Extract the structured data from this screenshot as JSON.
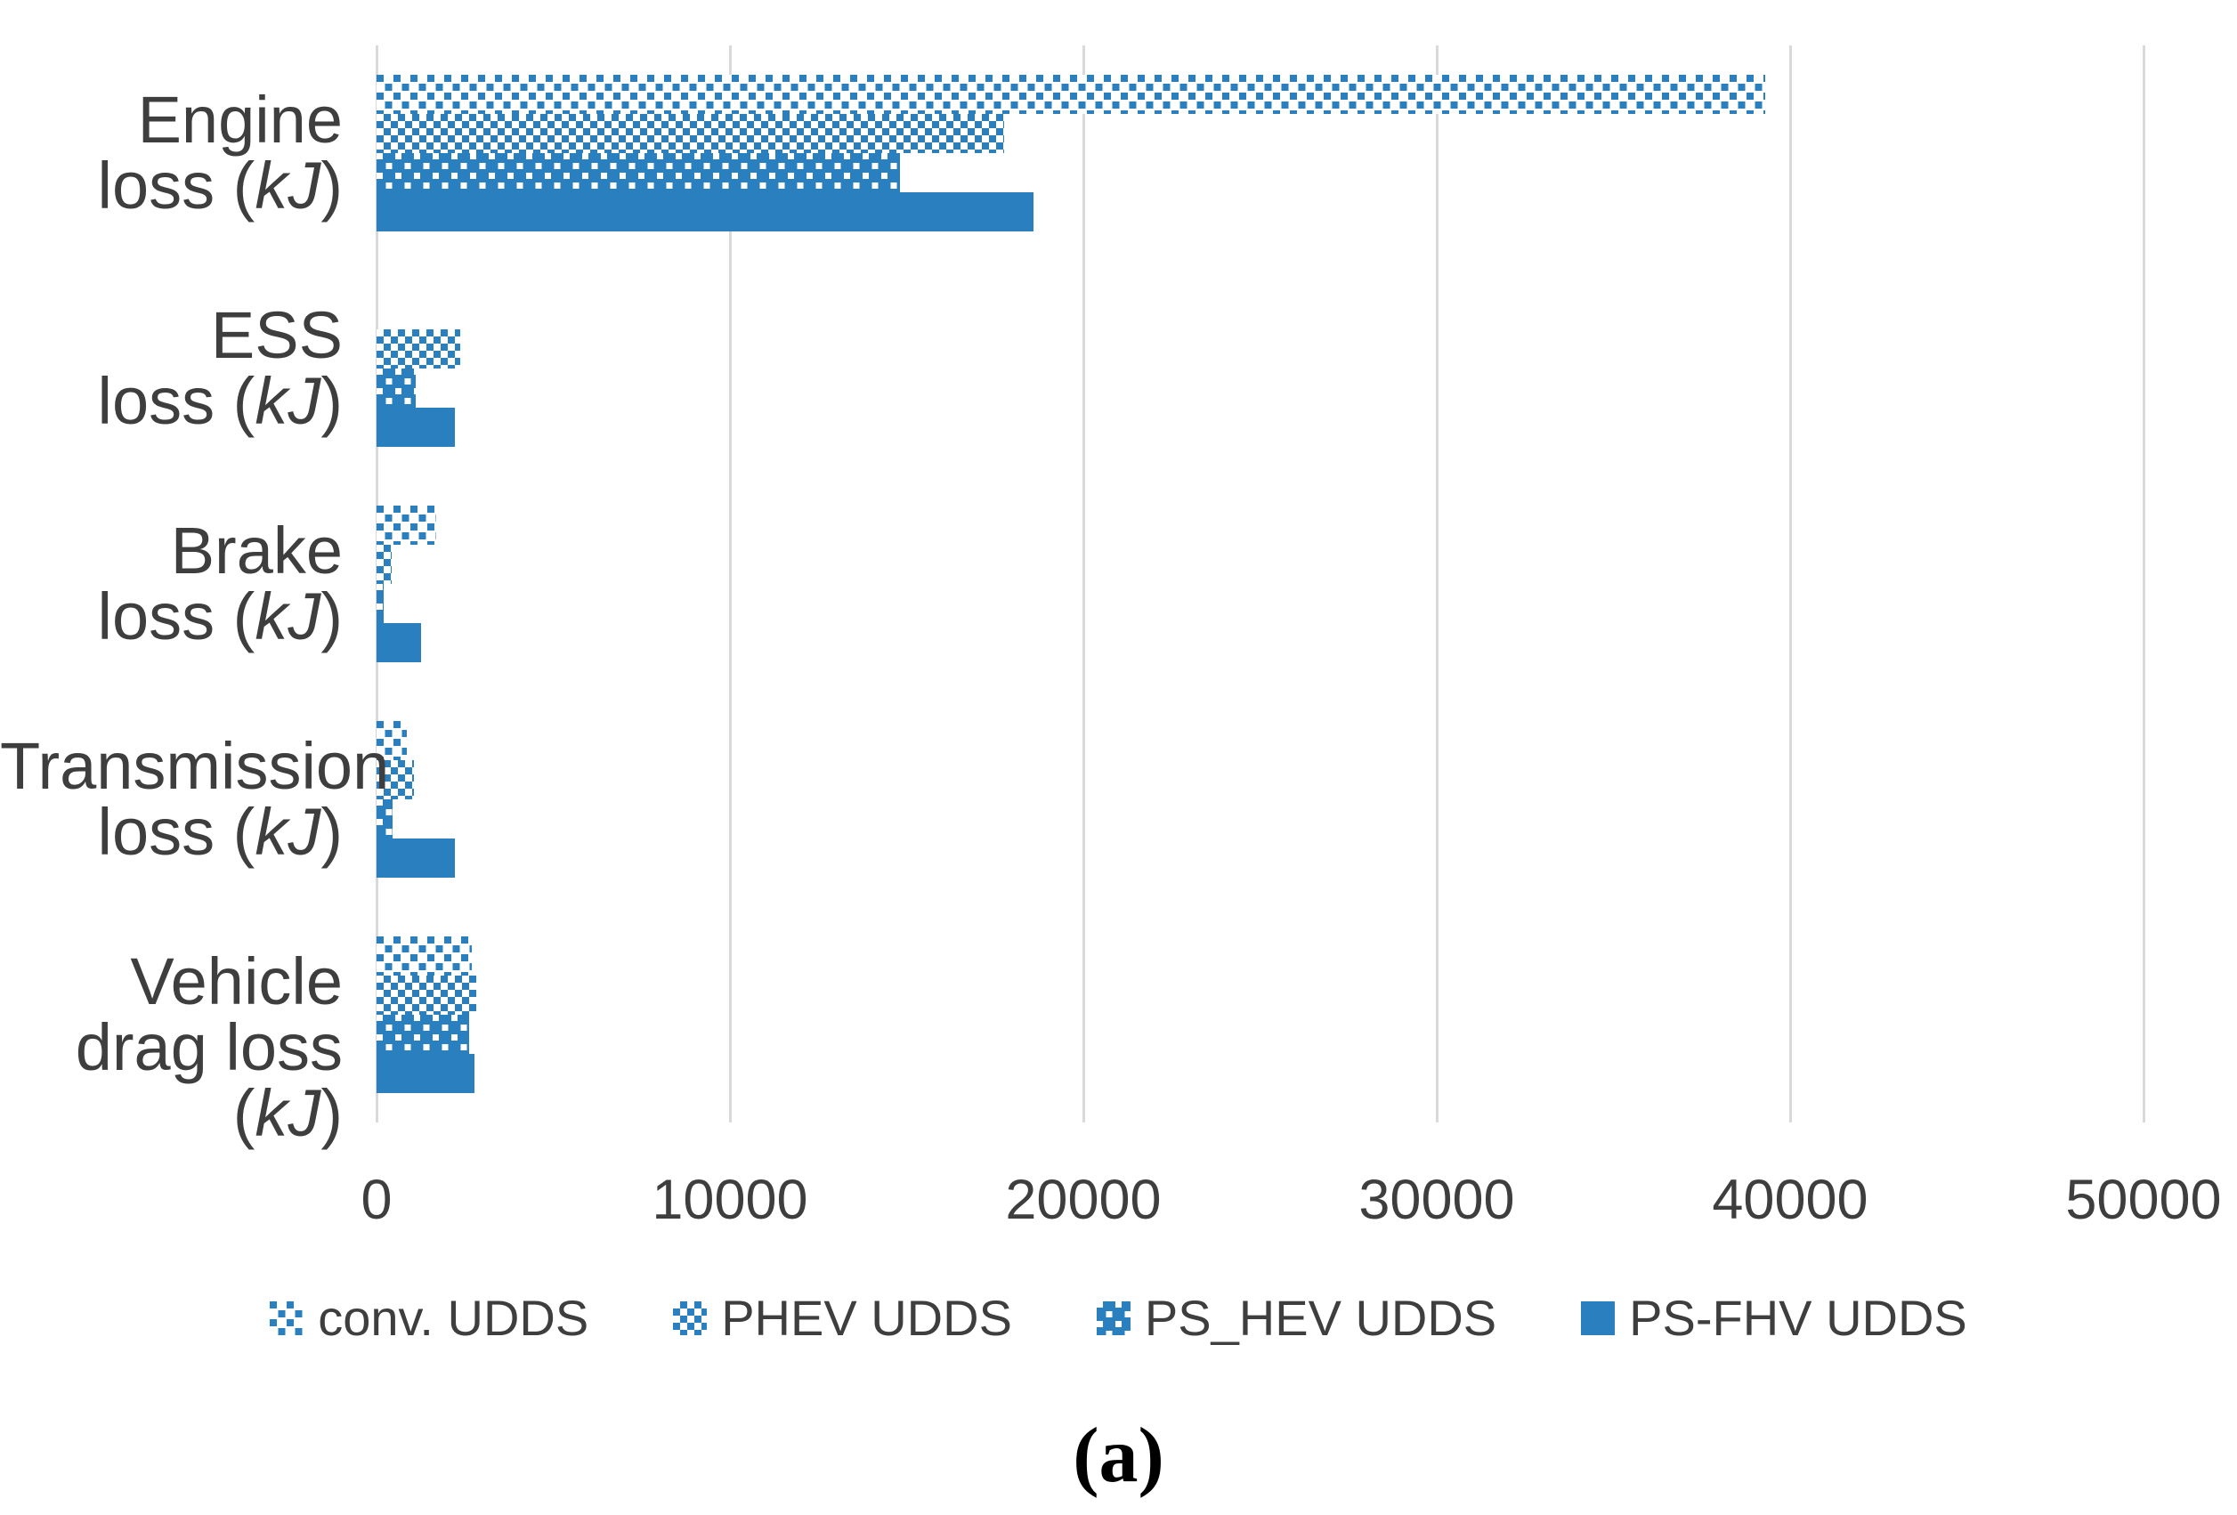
{
  "chart_data": {
    "type": "bar",
    "orientation": "horizontal",
    "title": "",
    "xlabel": "",
    "ylabel": "",
    "categories": [
      "Engine loss (kJ)",
      "ESS loss (kJ)",
      "Brake loss (kJ)",
      "Transmission loss (kJ)",
      "Vehicle drag loss (kJ)"
    ],
    "series": [
      {
        "name": "conv. UDDS",
        "pattern": "dots-sparse",
        "values": [
          39300,
          0,
          1700,
          860,
          2700
        ]
      },
      {
        "name": "PHEV UDDS",
        "pattern": "checker",
        "values": [
          17750,
          2370,
          430,
          1060,
          2820
        ]
      },
      {
        "name": "PS_HEV UDDS",
        "pattern": "dots-inverse",
        "values": [
          14800,
          1110,
          200,
          450,
          2620
        ]
      },
      {
        "name": "PS-FHV UDDS",
        "pattern": "solid",
        "values": [
          18600,
          2220,
          1260,
          2220,
          2770
        ]
      }
    ],
    "xlim": [
      0,
      50000
    ],
    "x_ticks": [
      0,
      10000,
      20000,
      30000,
      40000,
      50000
    ],
    "grid": true,
    "legend_position": "bottom",
    "bar_color": "#2A80BE",
    "unit": "kJ"
  },
  "axis": {
    "tick_labels": [
      "0",
      "10000",
      "20000",
      "30000",
      "40000",
      "50000"
    ]
  },
  "categories": [
    {
      "line1": "Engine",
      "line2_pre": "loss (",
      "line2_it": "kJ",
      "line2_post": ")"
    },
    {
      "line1": "ESS",
      "line2_pre": "loss (",
      "line2_it": "kJ",
      "line2_post": ")"
    },
    {
      "line1": "Brake",
      "line2_pre": "loss (",
      "line2_it": "kJ",
      "line2_post": ")"
    },
    {
      "line1": "Transmission",
      "line2_pre": "loss (",
      "line2_it": "kJ",
      "line2_post": ")"
    },
    {
      "line1": "Vehicle",
      "line2_pre": "drag loss (",
      "line2_it": "kJ",
      "line2_post": ")"
    }
  ],
  "legend": [
    {
      "label": "conv. UDDS",
      "pattern": "dots-sparse"
    },
    {
      "label": "PHEV UDDS",
      "pattern": "checker"
    },
    {
      "label": "PS_HEV UDDS",
      "pattern": "dots-inverse"
    },
    {
      "label": "PS-FHV UDDS",
      "pattern": "solid"
    }
  ],
  "caption": {
    "text": "(a)"
  },
  "colors": {
    "bar_blue": "#2A80BE",
    "gridline": "#D9D9D9",
    "text": "#3E3E3E"
  }
}
